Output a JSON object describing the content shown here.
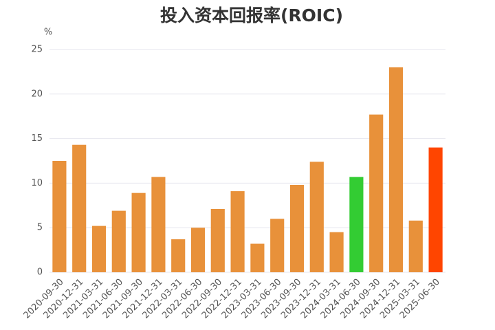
{
  "chart_data": {
    "type": "bar",
    "title": "投入资本回报率(ROIC)",
    "y_label": "%",
    "categories": [
      "2020-09-30",
      "2020-12-31",
      "2021-03-31",
      "2021-06-30",
      "2021-09-30",
      "2021-12-31",
      "2022-03-31",
      "2022-06-30",
      "2022-09-30",
      "2022-12-31",
      "2023-03-31",
      "2023-06-30",
      "2023-09-30",
      "2023-12-31",
      "2024-03-31",
      "2024-06-30",
      "2024-09-30",
      "2024-12-31",
      "2025-03-31",
      "2025-06-30"
    ],
    "values": [
      12.5,
      14.3,
      5.2,
      6.9,
      8.9,
      10.7,
      3.7,
      5.0,
      7.1,
      9.1,
      3.2,
      6.0,
      9.8,
      12.4,
      4.5,
      10.7,
      17.7,
      23.0,
      5.8,
      14.0
    ],
    "colors": [
      "#e8913a",
      "#e8913a",
      "#e8913a",
      "#e8913a",
      "#e8913a",
      "#e8913a",
      "#e8913a",
      "#e8913a",
      "#e8913a",
      "#e8913a",
      "#e8913a",
      "#e8913a",
      "#e8913a",
      "#e8913a",
      "#e8913a",
      "#33cc33",
      "#e8913a",
      "#e8913a",
      "#e8913a",
      "#ff4500"
    ],
    "ylim": [
      0,
      25
    ],
    "yticks": [
      0,
      5,
      10,
      15,
      20,
      25
    ],
    "grid": true
  }
}
